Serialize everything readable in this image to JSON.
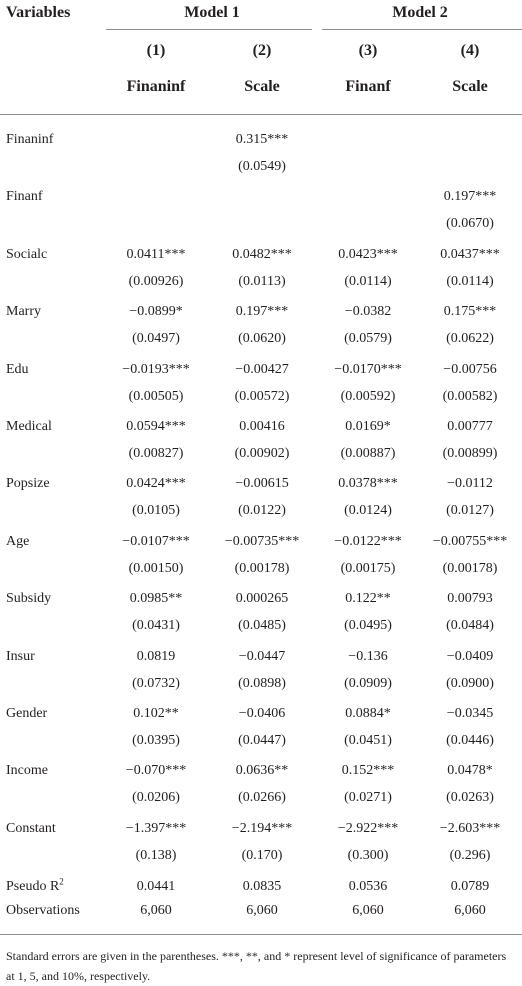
{
  "headers": {
    "variables": "Variables",
    "model1": "Model 1",
    "model2": "Model 2",
    "col_numbers": [
      "(1)",
      "(2)",
      "(3)",
      "(4)"
    ],
    "dep_vars": [
      "Finaninf",
      "Scale",
      "Finanf",
      "Scale"
    ]
  },
  "rows": [
    {
      "label": "Finaninf",
      "coef": [
        "",
        "0.315***",
        "",
        ""
      ],
      "se": [
        "",
        "(0.0549)",
        "",
        ""
      ]
    },
    {
      "label": "Finanf",
      "coef": [
        "",
        "",
        "",
        "0.197***"
      ],
      "se": [
        "",
        "",
        "",
        "(0.0670)"
      ]
    },
    {
      "label": "Socialc",
      "coef": [
        "0.0411***",
        "0.0482***",
        "0.0423***",
        "0.0437***"
      ],
      "se": [
        "(0.00926)",
        "(0.0113)",
        "(0.0114)",
        "(0.0114)"
      ]
    },
    {
      "label": "Marry",
      "coef": [
        "−0.0899*",
        "0.197***",
        "−0.0382",
        "0.175***"
      ],
      "se": [
        "(0.0497)",
        "(0.0620)",
        "(0.0579)",
        "(0.0622)"
      ]
    },
    {
      "label": "Edu",
      "coef": [
        "−0.0193***",
        "−0.00427",
        "−0.0170***",
        "−0.00756"
      ],
      "se": [
        "(0.00505)",
        "(0.00572)",
        "(0.00592)",
        "(0.00582)"
      ]
    },
    {
      "label": "Medical",
      "coef": [
        "0.0594***",
        "0.00416",
        "0.0169*",
        "0.00777"
      ],
      "se": [
        "(0.00827)",
        "(0.00902)",
        "(0.00887)",
        "(0.00899)"
      ]
    },
    {
      "label": "Popsize",
      "coef": [
        "0.0424***",
        "−0.00615",
        "0.0378***",
        "−0.0112"
      ],
      "se": [
        "(0.0105)",
        "(0.0122)",
        "(0.0124)",
        "(0.0127)"
      ]
    },
    {
      "label": "Age",
      "coef": [
        "−0.0107***",
        "−0.00735***",
        "−0.0122***",
        "−0.00755***"
      ],
      "se": [
        "(0.00150)",
        "(0.00178)",
        "(0.00175)",
        "(0.00178)"
      ]
    },
    {
      "label": "Subsidy",
      "coef": [
        "0.0985**",
        "0.000265",
        "0.122**",
        "0.00793"
      ],
      "se": [
        "(0.0431)",
        "(0.0485)",
        "(0.0495)",
        "(0.0484)"
      ]
    },
    {
      "label": "Insur",
      "coef": [
        "0.0819",
        "−0.0447",
        "−0.136",
        "−0.0409"
      ],
      "se": [
        "(0.0732)",
        "(0.0898)",
        "(0.0909)",
        "(0.0900)"
      ]
    },
    {
      "label": "Gender",
      "coef": [
        "0.102**",
        "−0.0406",
        "0.0884*",
        "−0.0345"
      ],
      "se": [
        "(0.0395)",
        "(0.0447)",
        "(0.0451)",
        "(0.0446)"
      ]
    },
    {
      "label": "Income",
      "coef": [
        "−0.070***",
        "0.0636**",
        "0.152***",
        "0.0478*"
      ],
      "se": [
        "(0.0206)",
        "(0.0266)",
        "(0.0271)",
        "(0.0263)"
      ]
    },
    {
      "label": "Constant",
      "coef": [
        "−1.397***",
        "−2.194***",
        "−2.922***",
        "−2.603***"
      ],
      "se": [
        "(0.138)",
        "(0.170)",
        "(0.300)",
        "(0.296)"
      ]
    }
  ],
  "pseudo_r2": {
    "label": "Pseudo R",
    "label_sup": "2",
    "values": [
      "0.0441",
      "0.0835",
      "0.0536",
      "0.0789"
    ]
  },
  "observations": {
    "label": "Observations",
    "values": [
      "6,060",
      "6,060",
      "6,060",
      "6,060"
    ]
  },
  "note": "Standard errors are given in the parentheses. ***, **, and * represent level of significance of parameters at 1, 5, and 10%, respectively."
}
